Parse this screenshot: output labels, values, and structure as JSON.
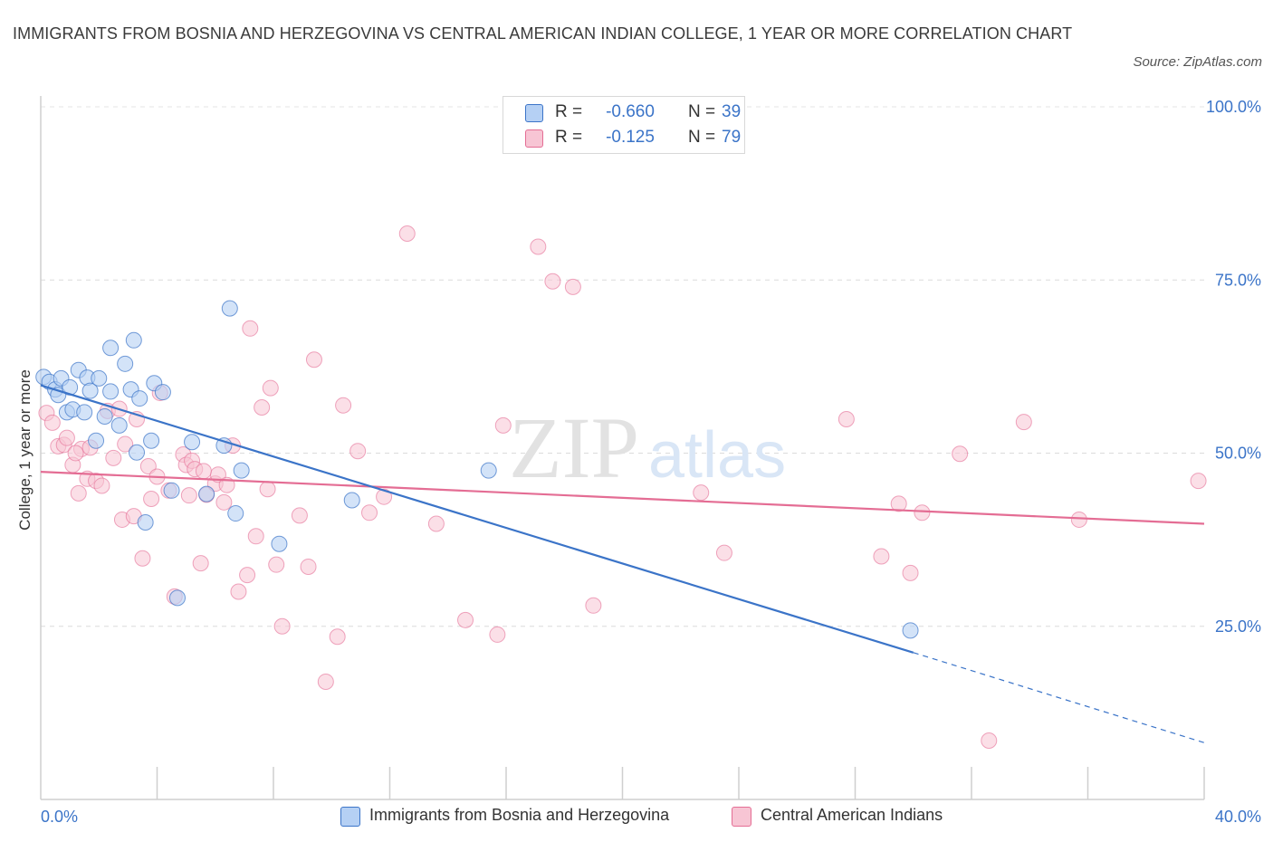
{
  "title": "IMMIGRANTS FROM BOSNIA AND HERZEGOVINA VS CENTRAL AMERICAN INDIAN COLLEGE, 1 YEAR OR MORE CORRELATION CHART",
  "source": "Source: ZipAtlas.com",
  "watermark": {
    "zip": "ZIP",
    "atlas": "atlas"
  },
  "legend": {
    "series": [
      {
        "r_label": "R =",
        "r_value": "-0.660",
        "n_label": "N =",
        "n_value": "39"
      },
      {
        "r_label": "R =",
        "r_value": "-0.125",
        "n_label": "N =",
        "n_value": "79"
      }
    ]
  },
  "chart_data": {
    "type": "scatter",
    "title": "IMMIGRANTS FROM BOSNIA AND HERZEGOVINA VS CENTRAL AMERICAN INDIAN COLLEGE, 1 YEAR OR MORE CORRELATION CHART",
    "xlabel": "",
    "ylabel": "College, 1 year or more",
    "xlim": [
      0,
      40
    ],
    "ylim": [
      0,
      100
    ],
    "x_tick_labels": [
      "0.0%",
      "40.0%"
    ],
    "y_tick_labels": [
      "100.0%",
      "75.0%",
      "50.0%",
      "25.0%"
    ],
    "y_tick_values": [
      100,
      75,
      50,
      25
    ],
    "grid": "horizontal dashed",
    "legend_placement": "top-center and bottom",
    "colors": {
      "blue": "#3b74c8",
      "blue_fill": "#b5d0f4",
      "pink": "#e46d94",
      "pink_fill": "#f7c5d4",
      "tick_text": "#3b74c8"
    },
    "series": [
      {
        "name": "Immigrants from Bosnia and Herzegovina",
        "color": "#3b74c8",
        "r": -0.66,
        "n": 39,
        "trend": {
          "x": [
            0,
            30
          ],
          "y": [
            59.8,
            21.2
          ],
          "dashed_to": [
            40,
            8.2
          ]
        },
        "points": [
          [
            0.1,
            61.0
          ],
          [
            0.3,
            60.3
          ],
          [
            0.5,
            59.2
          ],
          [
            0.6,
            58.4
          ],
          [
            0.7,
            60.8
          ],
          [
            0.9,
            55.9
          ],
          [
            1.0,
            59.5
          ],
          [
            1.1,
            56.3
          ],
          [
            1.3,
            62.0
          ],
          [
            1.5,
            55.9
          ],
          [
            1.6,
            60.9
          ],
          [
            1.7,
            59.0
          ],
          [
            1.9,
            51.8
          ],
          [
            2.0,
            60.8
          ],
          [
            2.2,
            55.3
          ],
          [
            2.4,
            58.9
          ],
          [
            2.4,
            65.2
          ],
          [
            2.7,
            54.0
          ],
          [
            2.9,
            62.9
          ],
          [
            3.1,
            59.2
          ],
          [
            3.2,
            66.3
          ],
          [
            3.3,
            50.1
          ],
          [
            3.4,
            57.9
          ],
          [
            3.6,
            40.0
          ],
          [
            3.8,
            51.8
          ],
          [
            3.9,
            60.1
          ],
          [
            4.2,
            58.8
          ],
          [
            4.5,
            44.6
          ],
          [
            4.7,
            29.1
          ],
          [
            5.2,
            51.6
          ],
          [
            5.7,
            44.1
          ],
          [
            6.3,
            51.1
          ],
          [
            6.5,
            70.9
          ],
          [
            6.7,
            41.3
          ],
          [
            6.9,
            47.5
          ],
          [
            8.2,
            36.9
          ],
          [
            10.7,
            43.2
          ],
          [
            15.4,
            47.5
          ],
          [
            29.9,
            24.4
          ]
        ]
      },
      {
        "name": "Central American Indians",
        "color": "#e46d94",
        "r": -0.125,
        "n": 79,
        "trend": {
          "x": [
            0,
            40
          ],
          "y": [
            47.3,
            39.8
          ]
        },
        "points": [
          [
            0.2,
            55.8
          ],
          [
            0.4,
            54.4
          ],
          [
            0.6,
            51.0
          ],
          [
            0.8,
            51.2
          ],
          [
            0.9,
            52.2
          ],
          [
            1.1,
            48.3
          ],
          [
            1.3,
            44.2
          ],
          [
            1.4,
            50.6
          ],
          [
            1.6,
            46.3
          ],
          [
            1.7,
            50.8
          ],
          [
            1.9,
            46.0
          ],
          [
            2.1,
            45.3
          ],
          [
            2.3,
            56.1
          ],
          [
            2.5,
            49.3
          ],
          [
            2.7,
            56.4
          ],
          [
            2.8,
            40.4
          ],
          [
            2.9,
            51.3
          ],
          [
            3.2,
            40.9
          ],
          [
            3.3,
            54.9
          ],
          [
            3.5,
            34.8
          ],
          [
            3.7,
            48.1
          ],
          [
            3.8,
            43.4
          ],
          [
            4.0,
            46.6
          ],
          [
            4.1,
            58.7
          ],
          [
            4.4,
            44.6
          ],
          [
            4.6,
            29.3
          ],
          [
            4.9,
            49.8
          ],
          [
            5.0,
            48.3
          ],
          [
            5.1,
            43.9
          ],
          [
            5.2,
            48.9
          ],
          [
            5.3,
            47.7
          ],
          [
            5.5,
            34.1
          ],
          [
            5.7,
            44.0
          ],
          [
            6.0,
            45.6
          ],
          [
            6.1,
            46.9
          ],
          [
            6.3,
            42.9
          ],
          [
            6.4,
            45.4
          ],
          [
            6.6,
            51.1
          ],
          [
            6.8,
            30.0
          ],
          [
            7.1,
            32.4
          ],
          [
            7.2,
            68.0
          ],
          [
            7.4,
            38.0
          ],
          [
            7.6,
            56.6
          ],
          [
            7.8,
            44.8
          ],
          [
            7.9,
            59.4
          ],
          [
            8.1,
            33.9
          ],
          [
            8.3,
            25.0
          ],
          [
            8.9,
            41.0
          ],
          [
            9.2,
            33.6
          ],
          [
            9.4,
            63.5
          ],
          [
            9.8,
            17.0
          ],
          [
            10.2,
            23.5
          ],
          [
            10.4,
            56.9
          ],
          [
            10.9,
            50.3
          ],
          [
            11.3,
            41.4
          ],
          [
            11.8,
            43.7
          ],
          [
            12.6,
            81.7
          ],
          [
            13.6,
            39.8
          ],
          [
            14.6,
            25.9
          ],
          [
            15.7,
            23.8
          ],
          [
            15.9,
            54.0
          ],
          [
            17.1,
            79.8
          ],
          [
            17.6,
            74.8
          ],
          [
            18.3,
            74.0
          ],
          [
            19.0,
            28.0
          ],
          [
            22.7,
            44.3
          ],
          [
            23.5,
            35.6
          ],
          [
            27.7,
            54.9
          ],
          [
            28.9,
            35.1
          ],
          [
            29.5,
            42.7
          ],
          [
            29.9,
            32.7
          ],
          [
            30.3,
            41.4
          ],
          [
            31.6,
            49.9
          ],
          [
            32.6,
            8.5
          ],
          [
            33.8,
            54.5
          ],
          [
            35.7,
            40.4
          ],
          [
            39.8,
            46.0
          ],
          [
            1.2,
            50.0
          ],
          [
            5.6,
            47.4
          ]
        ]
      }
    ]
  },
  "bottom_legend": [
    "Immigrants from Bosnia and Herzegovina",
    "Central American Indians"
  ]
}
